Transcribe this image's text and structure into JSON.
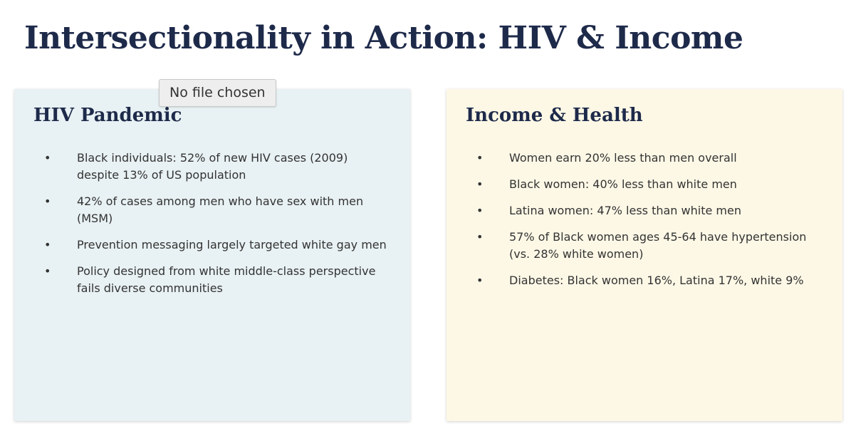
{
  "title": "Intersectionality in Action: HIV & Income",
  "file_input": {
    "label": "No file chosen"
  },
  "panels": [
    {
      "heading": "HIV Pandemic",
      "bullets": [
        "Black individuals: 52% of new HIV cases (2009) despite 13% of US population",
        "42% of cases among men who have sex with men (MSM)",
        "Prevention messaging largely targeted white gay men",
        "Policy designed from white middle-class perspective fails diverse communities"
      ]
    },
    {
      "heading": "Income & Health",
      "bullets": [
        "Women earn 20% less than men overall",
        "Black women: 40% less than white men",
        "Latina women: 47% less than white men",
        "57% of Black women ages 45-64 have hypertension (vs. 28% white women)",
        "Diabetes: Black women 16%, Latina 17%, white 9%"
      ]
    }
  ],
  "colors": {
    "title": "#1e2a4a",
    "left_panel_bg": "#e8f1f3",
    "right_panel_bg": "#fdf8e6",
    "body_text": "#333333"
  }
}
